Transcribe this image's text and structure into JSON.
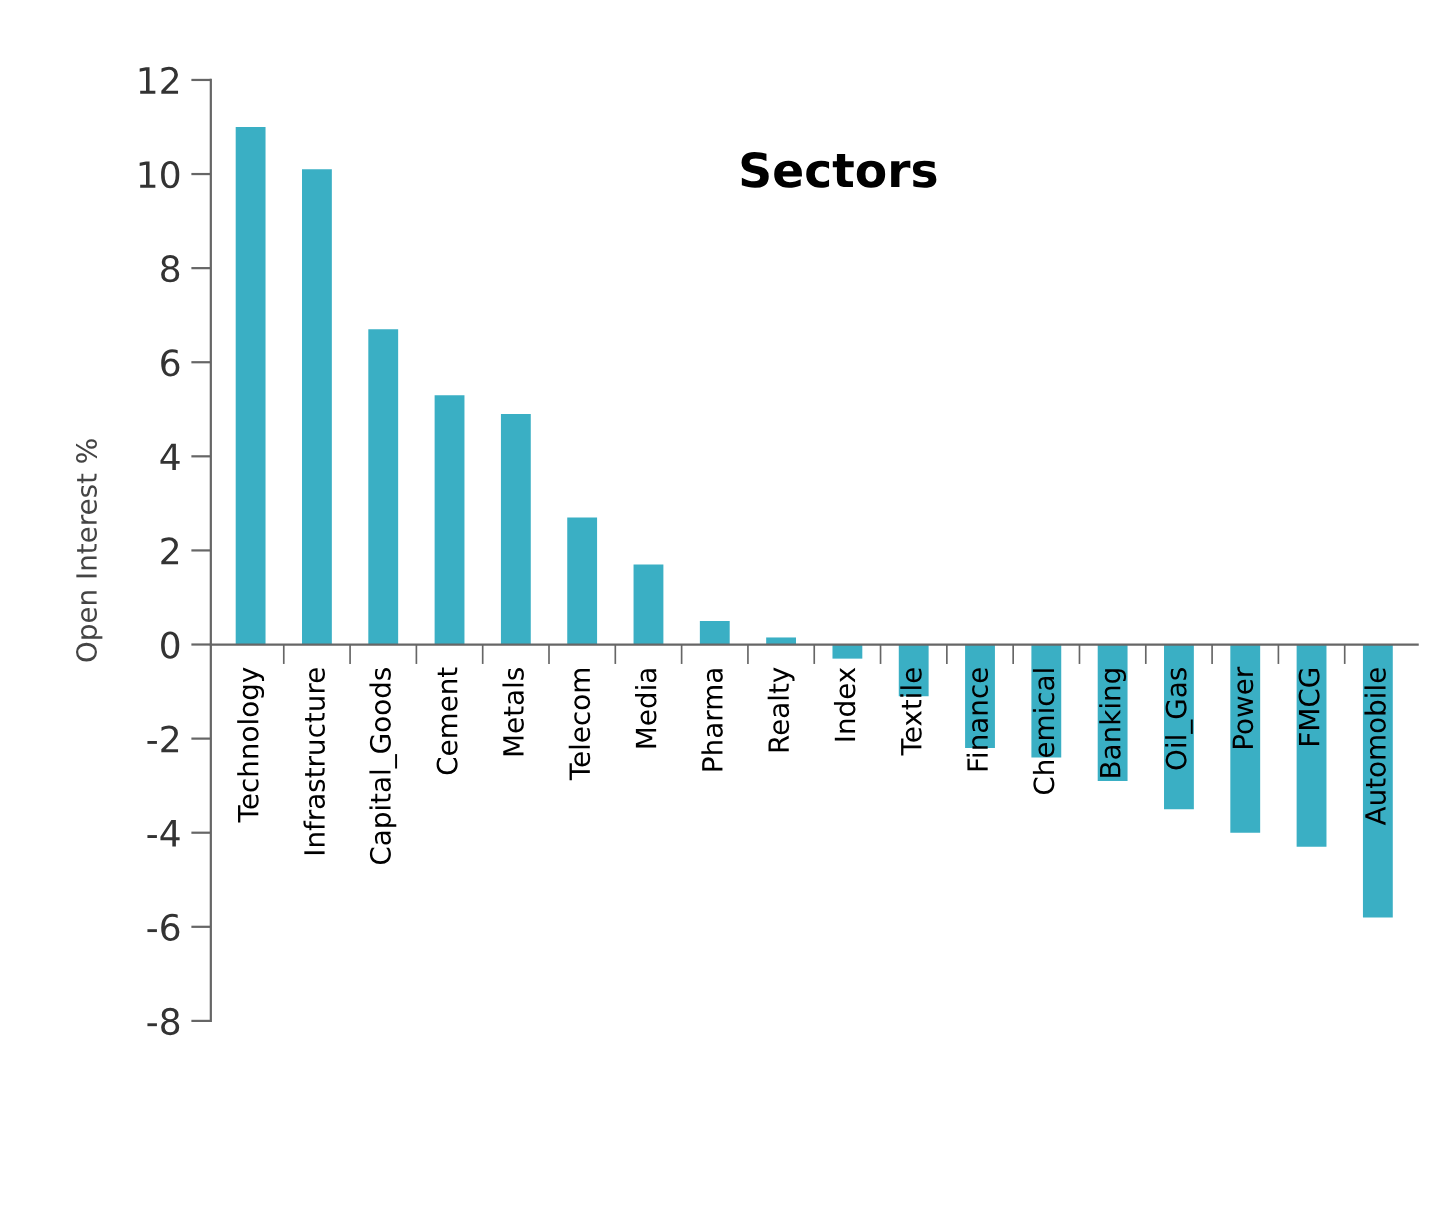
{
  "chart_data": {
    "type": "bar",
    "title": "Sectors",
    "ylabel": "Open Interest %",
    "categories": [
      "Technology",
      "Infrastructure",
      "Capital_Goods",
      "Cement",
      "Metals",
      "Telecom",
      "Media",
      "Pharma",
      "Realty",
      "Index",
      "Textile",
      "Finance",
      "Chemical",
      "Banking",
      "Oil_Gas",
      "Power",
      "FMCG",
      "Automobile"
    ],
    "values": [
      11.0,
      10.1,
      6.7,
      5.3,
      4.9,
      2.7,
      1.7,
      0.5,
      0.15,
      -0.3,
      -1.1,
      -2.2,
      -2.4,
      -2.9,
      -3.5,
      -4.0,
      -4.3,
      -5.8
    ],
    "color": "#3aafc4",
    "ylim": [
      -8,
      12
    ],
    "yticks": [
      -8,
      -6,
      -4,
      -2,
      0,
      2,
      4,
      6,
      8,
      10,
      12
    ],
    "grid": false,
    "legend": false
  }
}
